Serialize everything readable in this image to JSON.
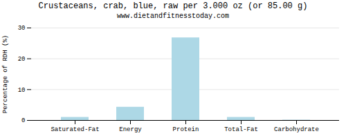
{
  "chart_data": {
    "type": "bar",
    "title": "Crustaceans, crab, blue, raw per 3.000 oz (or 85.00 g)",
    "subtitle": "www.dietandfitnesstoday.com",
    "categories": [
      "Saturated-Fat",
      "Energy",
      "Protein",
      "Total-Fat",
      "Carbohydrate"
    ],
    "values": [
      1.0,
      4.3,
      26.8,
      1.0,
      0.1
    ],
    "color": "#add8e6",
    "ylabel": "Percentage of RDH (%)",
    "ylim": [
      0,
      30
    ],
    "yticks": [
      0,
      10,
      20,
      30
    ],
    "grid": true
  }
}
